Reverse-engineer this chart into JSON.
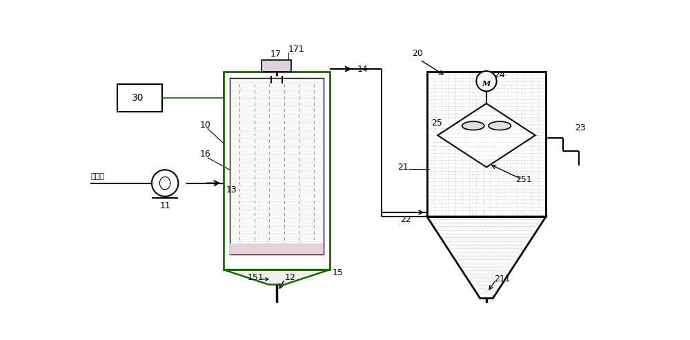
{
  "bg_color": "#ffffff",
  "lc": "#000000",
  "gc": "#1a6600",
  "pink_fill": "#f0c8d0",
  "inner_fill": "#f8f8f8",
  "dot_color": "#bbbbbb",
  "right_dot": "#bbbbbb"
}
